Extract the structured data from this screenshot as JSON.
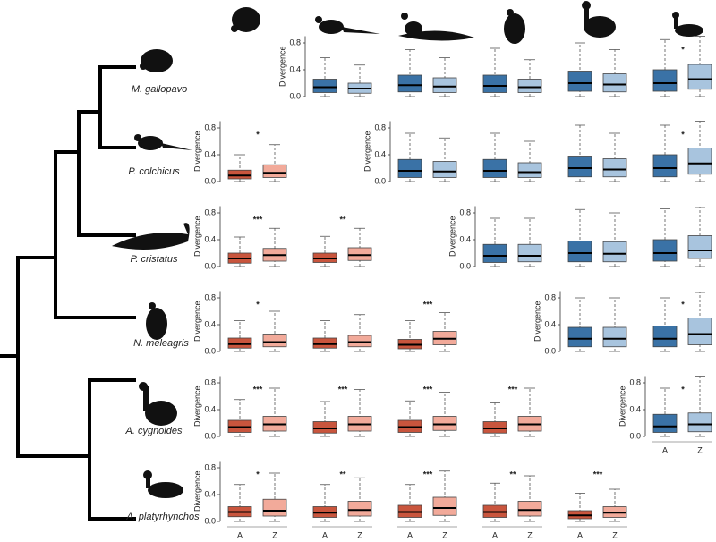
{
  "chart_data": {
    "type": "box",
    "ylabel": "Divergence",
    "categories": [
      "A",
      "Z"
    ],
    "species": [
      "M. gallopavo",
      "P. colchicus",
      "P. cristatus",
      "N. meleagris",
      "A. cygnoides",
      "A. platyrhynchos"
    ],
    "colors": [
      "#c9553d",
      "#f2aa9a",
      "#3a72a6",
      "#a8c4de"
    ],
    "ylim": [
      0,
      0.9
    ],
    "yticks": [
      {
        "value": 0,
        "label": "0.0"
      },
      {
        "value": 0.4,
        "label": "0.4"
      },
      {
        "value": 0.8,
        "label": "0.8"
      }
    ],
    "panels": [
      [
        null,
        {
          "values": [
            [
              0,
              0.06,
              0.14,
              0.26,
              0.58
            ],
            [
              0,
              0.05,
              0.12,
              0.2,
              0.47
            ]
          ]
        },
        {
          "values": [
            [
              0,
              0.07,
              0.17,
              0.32,
              0.7
            ],
            [
              0,
              0.06,
              0.15,
              0.28,
              0.58
            ]
          ]
        },
        {
          "values": [
            [
              0,
              0.06,
              0.16,
              0.32,
              0.72
            ],
            [
              0,
              0.06,
              0.14,
              0.26,
              0.55
            ]
          ]
        },
        {
          "values": [
            [
              0,
              0.08,
              0.2,
              0.38,
              0.8
            ],
            [
              0,
              0.07,
              0.18,
              0.34,
              0.7
            ]
          ]
        },
        {
          "stars": "*",
          "values": [
            [
              0,
              0.08,
              0.2,
              0.4,
              0.85
            ],
            [
              0,
              0.11,
              0.26,
              0.48,
              0.9
            ]
          ]
        }
      ],
      [
        {
          "stars": "*",
          "values": [
            [
              0,
              0.04,
              0.09,
              0.17,
              0.4
            ],
            [
              0,
              0.06,
              0.13,
              0.25,
              0.55
            ]
          ]
        },
        null,
        {
          "values": [
            [
              0,
              0.06,
              0.16,
              0.33,
              0.72
            ],
            [
              0,
              0.06,
              0.15,
              0.3,
              0.65
            ]
          ]
        },
        {
          "values": [
            [
              0,
              0.06,
              0.16,
              0.33,
              0.72
            ],
            [
              0,
              0.06,
              0.14,
              0.28,
              0.6
            ]
          ]
        },
        {
          "values": [
            [
              0,
              0.07,
              0.2,
              0.38,
              0.84
            ],
            [
              0,
              0.07,
              0.18,
              0.34,
              0.72
            ]
          ]
        },
        {
          "stars": "*",
          "values": [
            [
              0,
              0.07,
              0.2,
              0.4,
              0.84
            ],
            [
              0,
              0.11,
              0.27,
              0.5,
              0.9
            ]
          ]
        }
      ],
      [
        {
          "stars": "***",
          "values": [
            [
              0,
              0.05,
              0.12,
              0.2,
              0.44
            ],
            [
              0,
              0.08,
              0.17,
              0.27,
              0.57
            ]
          ]
        },
        {
          "stars": "**",
          "values": [
            [
              0,
              0.06,
              0.12,
              0.2,
              0.45
            ],
            [
              0,
              0.09,
              0.17,
              0.28,
              0.57
            ]
          ]
        },
        null,
        {
          "values": [
            [
              0,
              0.06,
              0.16,
              0.33,
              0.72
            ],
            [
              0,
              0.07,
              0.16,
              0.33,
              0.72
            ]
          ]
        },
        {
          "values": [
            [
              0,
              0.07,
              0.2,
              0.38,
              0.85
            ],
            [
              0,
              0.07,
              0.19,
              0.37,
              0.8
            ]
          ]
        },
        {
          "values": [
            [
              0,
              0.08,
              0.2,
              0.4,
              0.86
            ],
            [
              0,
              0.12,
              0.24,
              0.46,
              0.88
            ]
          ]
        }
      ],
      [
        {
          "stars": "*",
          "values": [
            [
              0,
              0.05,
              0.11,
              0.2,
              0.46
            ],
            [
              0,
              0.07,
              0.14,
              0.26,
              0.6
            ]
          ]
        },
        {
          "values": [
            [
              0,
              0.05,
              0.11,
              0.2,
              0.46
            ],
            [
              0,
              0.07,
              0.14,
              0.24,
              0.55
            ]
          ]
        },
        {
          "stars": "***",
          "values": [
            [
              0,
              0.04,
              0.1,
              0.18,
              0.46
            ],
            [
              0,
              0.1,
              0.19,
              0.3,
              0.58
            ]
          ]
        },
        null,
        {
          "values": [
            [
              0,
              0.07,
              0.19,
              0.36,
              0.8
            ],
            [
              0,
              0.07,
              0.19,
              0.36,
              0.8
            ]
          ]
        },
        {
          "stars": "*",
          "values": [
            [
              0,
              0.07,
              0.19,
              0.38,
              0.8
            ],
            [
              0,
              0.1,
              0.26,
              0.5,
              0.88
            ]
          ]
        }
      ],
      [
        {
          "stars": "***",
          "values": [
            [
              0,
              0.06,
              0.14,
              0.24,
              0.55
            ],
            [
              0,
              0.08,
              0.18,
              0.3,
              0.72
            ]
          ]
        },
        {
          "stars": "***",
          "values": [
            [
              0,
              0.05,
              0.12,
              0.22,
              0.52
            ],
            [
              0,
              0.08,
              0.18,
              0.3,
              0.7
            ]
          ]
        },
        {
          "stars": "***",
          "values": [
            [
              0,
              0.06,
              0.14,
              0.24,
              0.53
            ],
            [
              0,
              0.09,
              0.18,
              0.3,
              0.66
            ]
          ]
        },
        {
          "stars": "***",
          "values": [
            [
              0,
              0.05,
              0.12,
              0.22,
              0.5
            ],
            [
              0,
              0.08,
              0.18,
              0.3,
              0.72
            ]
          ]
        },
        null,
        {
          "stars": "*",
          "values": [
            [
              0,
              0.06,
              0.15,
              0.33,
              0.72
            ],
            [
              0,
              0.07,
              0.18,
              0.35,
              0.9
            ]
          ]
        }
      ],
      [
        {
          "stars": "*",
          "values": [
            [
              0,
              0.07,
              0.14,
              0.22,
              0.55
            ],
            [
              0,
              0.08,
              0.16,
              0.33,
              0.72
            ]
          ]
        },
        {
          "stars": "**",
          "values": [
            [
              0,
              0.06,
              0.13,
              0.22,
              0.55
            ],
            [
              0,
              0.08,
              0.17,
              0.3,
              0.65
            ]
          ]
        },
        {
          "stars": "***",
          "values": [
            [
              0,
              0.06,
              0.14,
              0.24,
              0.55
            ],
            [
              0,
              0.09,
              0.2,
              0.36,
              0.75
            ]
          ]
        },
        {
          "stars": "**",
          "values": [
            [
              0,
              0.06,
              0.14,
              0.24,
              0.57
            ],
            [
              0,
              0.08,
              0.17,
              0.3,
              0.68
            ]
          ]
        },
        {
          "stars": "***",
          "values": [
            [
              0,
              0.04,
              0.09,
              0.16,
              0.42
            ],
            [
              0,
              0.06,
              0.13,
              0.22,
              0.48
            ]
          ]
        },
        null
      ]
    ]
  }
}
